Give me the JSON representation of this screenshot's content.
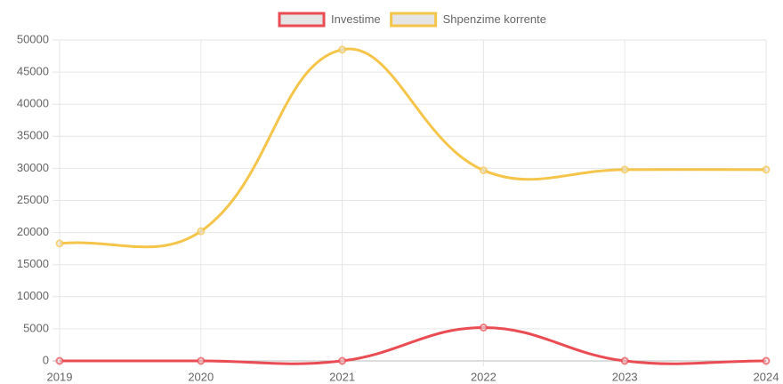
{
  "chart_data": {
    "type": "line",
    "categories": [
      "2019",
      "2020",
      "2021",
      "2022",
      "2023",
      "2024"
    ],
    "series": [
      {
        "name": "Investime",
        "color": "#ea4c54",
        "values": [
          0,
          0,
          0,
          5200,
          0,
          0
        ]
      },
      {
        "name": "Shpenzime korrente",
        "color": "#f5c54b",
        "values": [
          18300,
          20200,
          48500,
          29700,
          29800,
          29800
        ]
      }
    ],
    "ylim": [
      0,
      50000
    ],
    "yticks": [
      0,
      5000,
      10000,
      15000,
      20000,
      25000,
      30000,
      35000,
      40000,
      45000,
      50000
    ],
    "grid": true,
    "legend": "top"
  }
}
